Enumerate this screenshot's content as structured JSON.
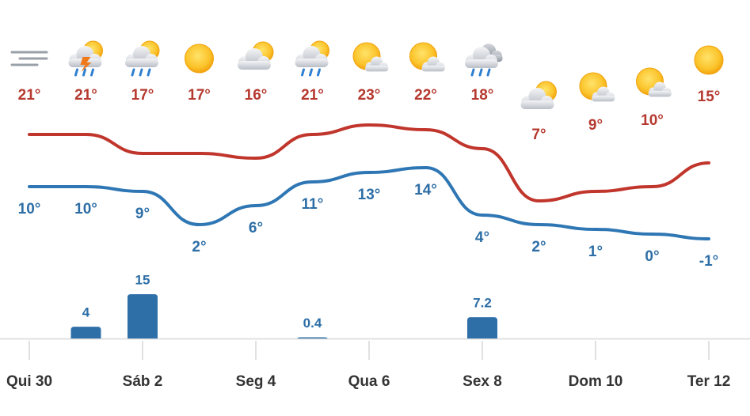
{
  "chart_data": {
    "type": "line",
    "categories": [
      "Qui 30",
      null,
      "Sáb 2",
      null,
      "Seg 4",
      null,
      "Qua 6",
      null,
      "Sex 8",
      null,
      "Dom 10",
      null,
      "Ter 12"
    ],
    "series": [
      {
        "type": "line",
        "color": "#c1362c",
        "label_color": "#b5392f",
        "values": [
          21,
          21,
          17,
          17,
          16,
          21,
          23,
          22,
          18,
          7,
          9,
          10,
          15
        ],
        "value_labels": [
          "21°",
          "21°",
          "17°",
          "17°",
          "16°",
          "21°",
          "23°",
          "22°",
          "18°",
          "7°",
          "9°",
          "10°",
          "15°"
        ]
      },
      {
        "type": "line",
        "color": "#2f77b4",
        "label_color": "#2d6ea6",
        "values": [
          10,
          10,
          9,
          2,
          6,
          11,
          13,
          14,
          4,
          2,
          1,
          0,
          -1
        ],
        "value_labels": [
          "10°",
          "10°",
          "9°",
          "2°",
          "6°",
          "11°",
          "13°",
          "14°",
          "4°",
          "2°",
          "1°",
          "0°",
          "-1°"
        ]
      },
      {
        "type": "bar",
        "color": "#2f6fa8",
        "label_color": "#2d6ea6",
        "values": [
          null,
          4,
          15,
          null,
          null,
          0.4,
          null,
          null,
          7.2,
          null,
          null,
          null,
          null
        ]
      }
    ]
  }
}
